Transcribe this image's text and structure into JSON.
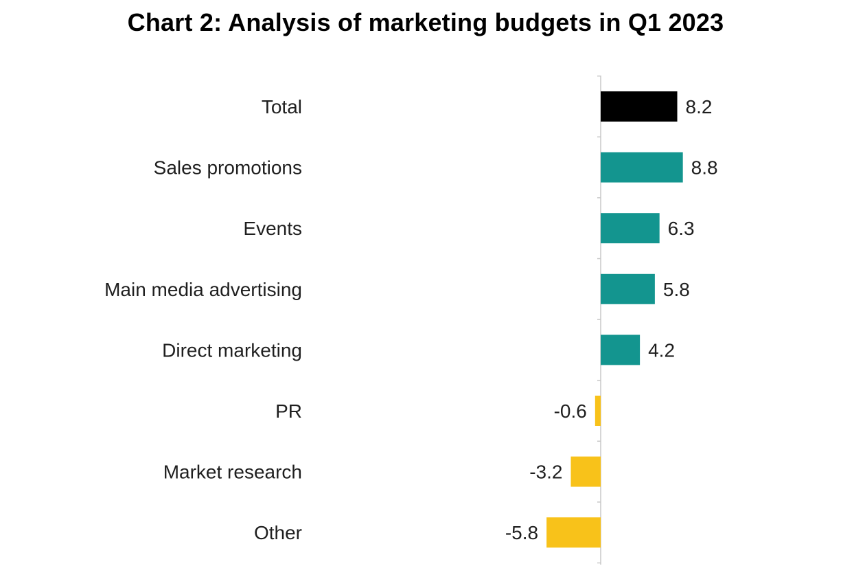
{
  "chart_data": {
    "type": "bar",
    "orientation": "horizontal",
    "title": "Chart 2: Analysis of marketing budgets in Q1 2023",
    "categories": [
      "Total",
      "Sales promotions",
      "Events",
      "Main media advertising",
      "Direct marketing",
      "PR",
      "Market research",
      "Other"
    ],
    "values": [
      8.2,
      8.8,
      6.3,
      5.8,
      4.2,
      -0.6,
      -3.2,
      -5.8
    ],
    "value_labels": [
      "8.2",
      "8.8",
      "6.3",
      "5.8",
      "4.2",
      "-0.6",
      "-3.2",
      "-5.8"
    ],
    "bar_colors": [
      "#000000",
      "#13958f",
      "#13958f",
      "#13958f",
      "#13958f",
      "#f8c21a",
      "#f8c21a",
      "#f8c21a"
    ],
    "axis_color": "#c8c8c8",
    "xlim": [
      -6.0,
      9.0
    ],
    "xlabel": "",
    "ylabel": "",
    "grid": false,
    "legend": "none"
  }
}
